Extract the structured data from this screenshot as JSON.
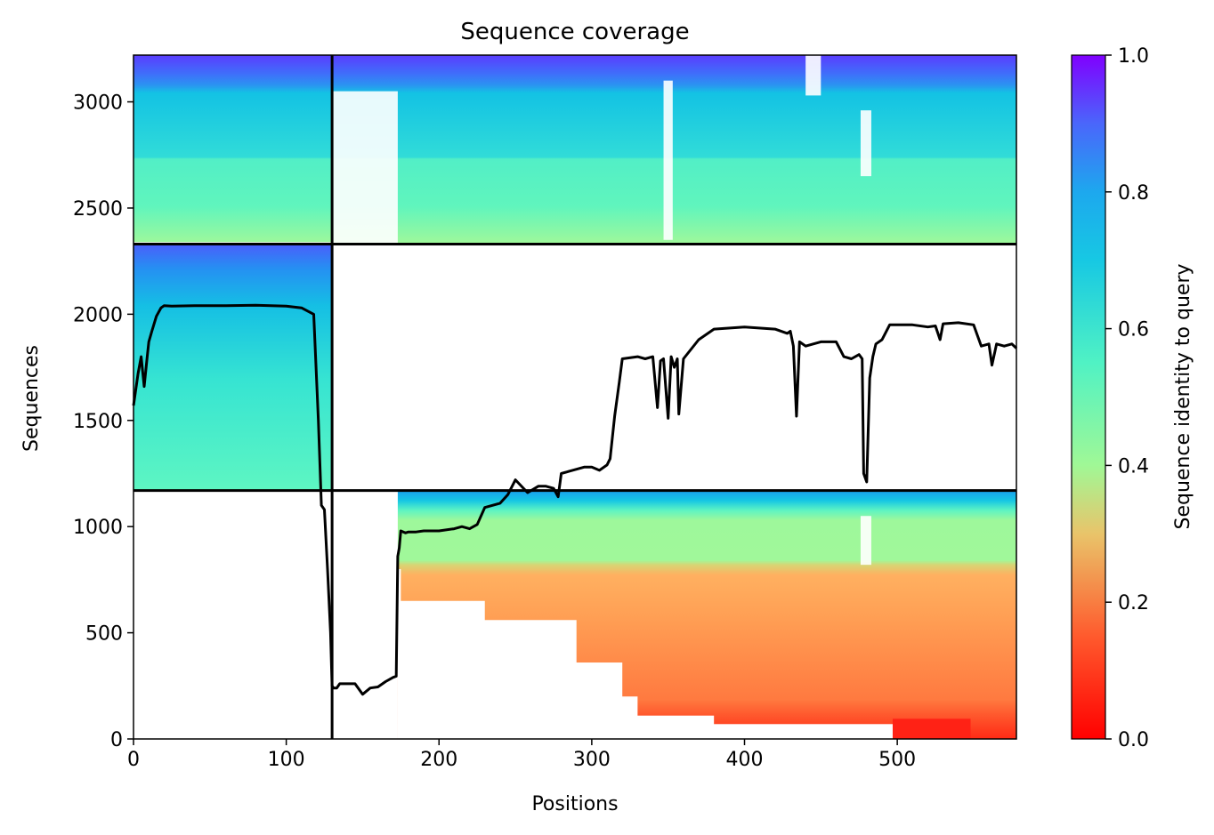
{
  "chart_data": {
    "type": "heatmap",
    "title": "Sequence coverage",
    "xlabel": "Positions",
    "ylabel": "Sequences",
    "xlim": [
      0,
      578
    ],
    "ylim": [
      0,
      3220
    ],
    "x_ticks": [
      0,
      100,
      200,
      300,
      400,
      500
    ],
    "y_ticks": [
      0,
      500,
      1000,
      1500,
      2000,
      2500,
      3000
    ],
    "grid": false,
    "colorbar": {
      "label": "Sequence identity to query",
      "range": [
        0,
        1
      ],
      "ticks": [
        "0.0",
        "0.2",
        "0.4",
        "0.6",
        "0.8",
        "1.0"
      ],
      "colormap": "rainbow_r"
    },
    "chain_boundary_x": 130,
    "block_boundaries_y": [
      1170,
      2330
    ],
    "blocks": [
      {
        "seq_range": [
          2330,
          3220
        ],
        "pos_range": [
          0,
          578
        ],
        "identity_bottom": 0.45,
        "identity_top": 0.9
      },
      {
        "seq_range": [
          1170,
          2330
        ],
        "pos_range": [
          0,
          130
        ],
        "identity_bottom": 0.6,
        "identity_top": 0.88
      },
      {
        "seq_range": [
          0,
          1170
        ],
        "pos_range": [
          173,
          578
        ],
        "identity_bottom": 0.05,
        "identity_top": 0.82
      }
    ],
    "series": [
      {
        "type": "line",
        "x": [
          0,
          3,
          5,
          7,
          9,
          10,
          12,
          15,
          18,
          20,
          25,
          40,
          60,
          80,
          100,
          110,
          118,
          121,
          122,
          123,
          125,
          127,
          129,
          130,
          131,
          133,
          135,
          140,
          145,
          150,
          155,
          160,
          165,
          170,
          172,
          173,
          174,
          175,
          178,
          180,
          185,
          190,
          200,
          210,
          215,
          220,
          225,
          230,
          240,
          245,
          250,
          258,
          265,
          270,
          275,
          278,
          280,
          285,
          290,
          295,
          300,
          305,
          310,
          312,
          315,
          318,
          320,
          330,
          335,
          340,
          343,
          345,
          347,
          350,
          352,
          354,
          356,
          357,
          360,
          370,
          380,
          400,
          420,
          428,
          430,
          432,
          434,
          436,
          440,
          450,
          460,
          465,
          470,
          475,
          477,
          478,
          480,
          482,
          484,
          486,
          490,
          495,
          500,
          510,
          520,
          525,
          528,
          530,
          540,
          550,
          555,
          560,
          562,
          565,
          570,
          575,
          578
        ],
        "y": [
          1570,
          1720,
          1800,
          1660,
          1800,
          1870,
          1920,
          1990,
          2030,
          2040,
          2038,
          2040,
          2040,
          2042,
          2038,
          2030,
          2000,
          1500,
          1300,
          1100,
          1080,
          800,
          500,
          250,
          240,
          240,
          260,
          260,
          260,
          210,
          240,
          245,
          270,
          290,
          295,
          860,
          900,
          980,
          970,
          975,
          975,
          980,
          980,
          990,
          1000,
          990,
          1010,
          1090,
          1110,
          1150,
          1220,
          1160,
          1190,
          1190,
          1180,
          1140,
          1250,
          1260,
          1270,
          1280,
          1280,
          1265,
          1290,
          1320,
          1520,
          1680,
          1790,
          1800,
          1790,
          1800,
          1560,
          1780,
          1790,
          1510,
          1800,
          1750,
          1790,
          1530,
          1790,
          1880,
          1930,
          1940,
          1930,
          1910,
          1920,
          1850,
          1520,
          1870,
          1850,
          1870,
          1870,
          1800,
          1790,
          1810,
          1790,
          1250,
          1210,
          1700,
          1800,
          1860,
          1880,
          1950,
          1950,
          1950,
          1940,
          1945,
          1880,
          1955,
          1960,
          1950,
          1850,
          1860,
          1760,
          1860,
          1850,
          1860,
          1840
        ]
      }
    ]
  }
}
